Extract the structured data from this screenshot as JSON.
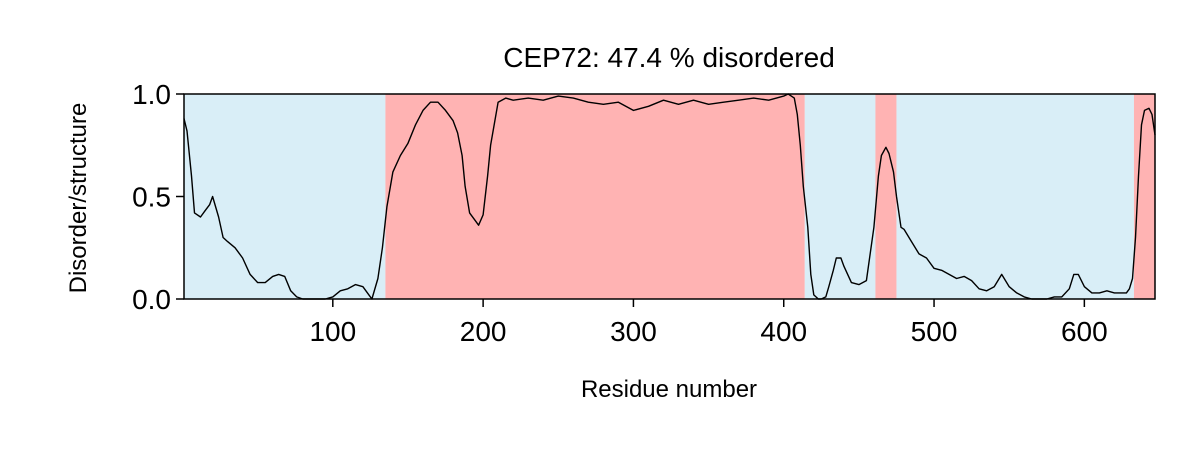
{
  "chart_data": {
    "type": "line",
    "title": "CEP72: 47.4 % disordered",
    "xlabel": "Residue number",
    "ylabel": "Disorder/structure",
    "xlim": [
      1,
      647
    ],
    "ylim": [
      0.0,
      1.0
    ],
    "xticks": [
      100,
      200,
      300,
      400,
      500,
      600
    ],
    "xtick_labels": [
      "100",
      "200",
      "300",
      "400",
      "500",
      "600"
    ],
    "yticks": [
      0.0,
      0.5,
      1.0
    ],
    "ytick_labels": [
      "0.0",
      "0.5",
      "1.0"
    ],
    "grid": false,
    "colors": {
      "ordered": "#d9eef7",
      "disordered": "#ffb3b3",
      "line": "#000000"
    },
    "regions": [
      {
        "start": 1,
        "end": 135,
        "state": "ordered"
      },
      {
        "start": 135,
        "end": 414,
        "state": "disordered"
      },
      {
        "start": 414,
        "end": 461,
        "state": "ordered"
      },
      {
        "start": 461,
        "end": 475,
        "state": "disordered"
      },
      {
        "start": 475,
        "end": 633,
        "state": "ordered"
      },
      {
        "start": 633,
        "end": 647,
        "state": "disordered"
      }
    ],
    "series": [
      {
        "x": [
          1,
          3,
          6,
          8,
          12,
          15,
          18,
          20,
          24,
          27,
          30,
          35,
          40,
          45,
          50,
          55,
          60,
          64,
          68,
          72,
          76,
          80,
          85,
          90,
          95,
          100,
          105,
          110,
          115,
          120,
          124,
          126,
          130,
          133,
          136,
          140,
          145,
          150,
          155,
          160,
          165,
          170,
          175,
          180,
          183,
          186,
          188,
          191,
          195,
          197,
          200,
          203,
          205,
          210,
          215,
          220,
          230,
          240,
          250,
          260,
          270,
          280,
          290,
          300,
          310,
          320,
          330,
          340,
          350,
          360,
          370,
          380,
          390,
          400,
          403,
          405,
          407,
          409,
          411,
          413,
          416,
          418,
          420,
          423,
          425,
          428,
          430,
          433,
          435,
          438,
          440,
          445,
          450,
          455,
          460,
          463,
          465,
          468,
          470,
          473,
          475,
          478,
          480,
          485,
          490,
          495,
          500,
          505,
          510,
          515,
          520,
          525,
          530,
          535,
          540,
          545,
          550,
          555,
          560,
          565,
          570,
          575,
          580,
          585,
          590,
          593,
          596,
          600,
          605,
          610,
          615,
          620,
          625,
          628,
          630,
          632,
          634,
          636,
          638,
          640,
          643,
          645,
          647
        ],
        "y": [
          0.88,
          0.82,
          0.6,
          0.42,
          0.4,
          0.43,
          0.46,
          0.5,
          0.4,
          0.3,
          0.28,
          0.25,
          0.2,
          0.12,
          0.08,
          0.08,
          0.11,
          0.12,
          0.11,
          0.04,
          0.01,
          0.0,
          0.0,
          0.0,
          0.0,
          0.01,
          0.04,
          0.05,
          0.07,
          0.06,
          0.02,
          0.0,
          0.1,
          0.25,
          0.45,
          0.62,
          0.7,
          0.76,
          0.85,
          0.92,
          0.96,
          0.96,
          0.92,
          0.87,
          0.81,
          0.7,
          0.55,
          0.42,
          0.38,
          0.36,
          0.41,
          0.6,
          0.75,
          0.96,
          0.98,
          0.97,
          0.98,
          0.97,
          0.99,
          0.98,
          0.96,
          0.95,
          0.96,
          0.92,
          0.94,
          0.97,
          0.95,
          0.97,
          0.95,
          0.96,
          0.97,
          0.98,
          0.97,
          0.99,
          1.0,
          0.99,
          0.98,
          0.9,
          0.75,
          0.55,
          0.35,
          0.12,
          0.02,
          0.0,
          0.0,
          0.01,
          0.06,
          0.14,
          0.2,
          0.2,
          0.16,
          0.08,
          0.07,
          0.09,
          0.35,
          0.6,
          0.7,
          0.74,
          0.71,
          0.62,
          0.5,
          0.35,
          0.34,
          0.28,
          0.22,
          0.2,
          0.15,
          0.14,
          0.12,
          0.1,
          0.11,
          0.09,
          0.05,
          0.04,
          0.06,
          0.12,
          0.06,
          0.03,
          0.01,
          0.0,
          0.0,
          0.0,
          0.01,
          0.01,
          0.05,
          0.12,
          0.12,
          0.06,
          0.03,
          0.03,
          0.04,
          0.03,
          0.03,
          0.03,
          0.05,
          0.1,
          0.3,
          0.6,
          0.85,
          0.92,
          0.93,
          0.9,
          0.8
        ]
      }
    ]
  }
}
